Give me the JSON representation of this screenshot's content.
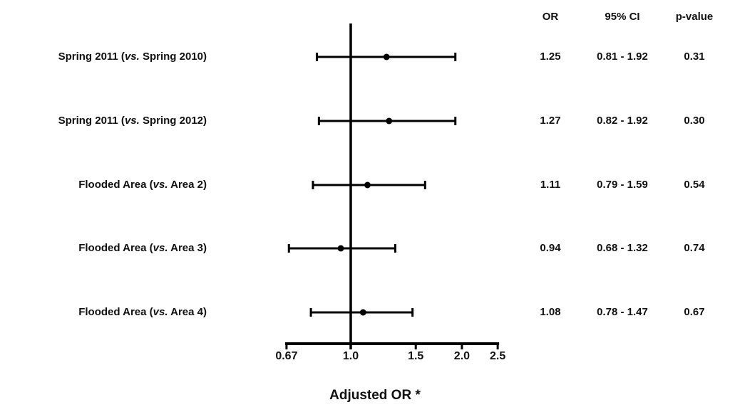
{
  "colors": {
    "background": "#ffffff",
    "text": "#111111",
    "line": "#000000"
  },
  "table": {
    "headers": [
      "OR",
      "95% CI",
      "p-value"
    ]
  },
  "chart_data": {
    "type": "forest",
    "title": "",
    "xlabel": "Adjusted OR *",
    "x_scale": "log",
    "xlim": [
      0.67,
      2.5
    ],
    "x_ticks": [
      0.67,
      1.0,
      1.5,
      2.0,
      2.5
    ],
    "x_tick_labels": [
      "0.67",
      "1.0",
      "1.5",
      "2.0",
      "2.5"
    ],
    "reference_line": 1.0,
    "grid": false,
    "rows": [
      {
        "label_pre": "Spring 2011 (",
        "label_vs": "vs.",
        "label_post": " Spring 2010)",
        "or": 1.25,
        "ci_low": 0.81,
        "ci_high": 1.92,
        "or_text": "1.25",
        "ci_text": "0.81 - 1.92",
        "p_text": "0.31"
      },
      {
        "label_pre": "Spring 2011 (",
        "label_vs": "vs.",
        "label_post": " Spring 2012)",
        "or": 1.27,
        "ci_low": 0.82,
        "ci_high": 1.92,
        "or_text": "1.27",
        "ci_text": "0.82 - 1.92",
        "p_text": "0.30"
      },
      {
        "label_pre": "Flooded Area (",
        "label_vs": "vs.",
        "label_post": " Area 2)",
        "or": 1.11,
        "ci_low": 0.79,
        "ci_high": 1.59,
        "or_text": "1.11",
        "ci_text": "0.79 - 1.59",
        "p_text": "0.54"
      },
      {
        "label_pre": "Flooded Area (",
        "label_vs": "vs.",
        "label_post": " Area 3)",
        "or": 0.94,
        "ci_low": 0.68,
        "ci_high": 1.32,
        "or_text": "0.94",
        "ci_text": "0.68 - 1.32",
        "p_text": "0.74"
      },
      {
        "label_pre": "Flooded Area (",
        "label_vs": "vs.",
        "label_post": " Area 4)",
        "or": 1.08,
        "ci_low": 0.78,
        "ci_high": 1.47,
        "or_text": "1.08",
        "ci_text": "0.78 - 1.47",
        "p_text": "0.67"
      }
    ]
  }
}
